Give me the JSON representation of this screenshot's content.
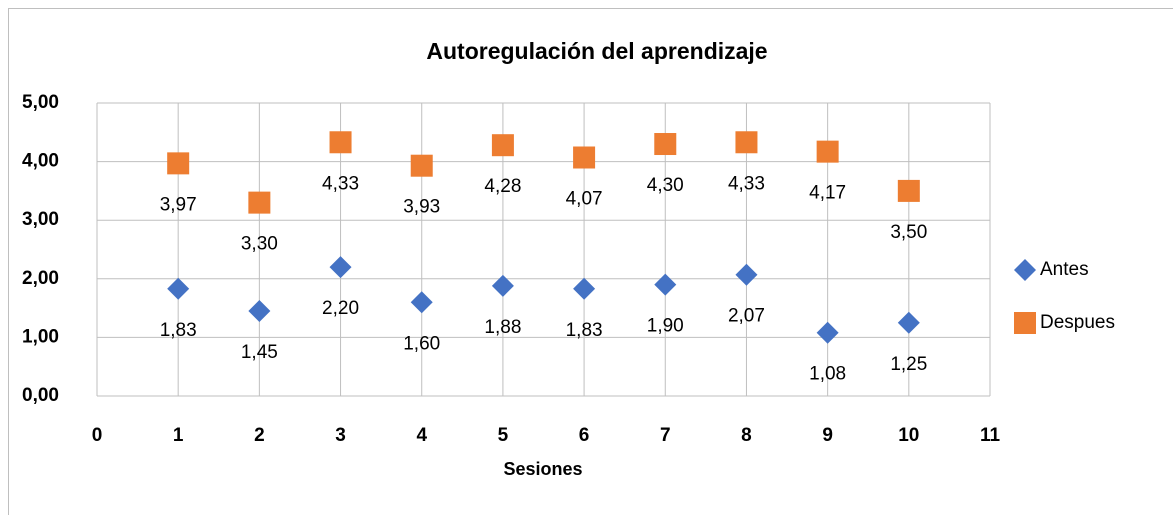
{
  "chart_data": {
    "type": "scatter",
    "title": "Autoregulación del aprendizaje",
    "x_label": "Sesiones",
    "xlim": [
      0,
      11
    ],
    "xticks": [
      0,
      1,
      2,
      3,
      4,
      5,
      6,
      7,
      8,
      9,
      10,
      11
    ],
    "ylim": [
      0,
      5
    ],
    "yticks": [
      {
        "value": 0,
        "label": "0,00"
      },
      {
        "value": 1,
        "label": "1,00"
      },
      {
        "value": 2,
        "label": "2,00"
      },
      {
        "value": 3,
        "label": "3,00"
      },
      {
        "value": 4,
        "label": "4,00"
      },
      {
        "value": 5,
        "label": "5,00"
      }
    ],
    "grid": true,
    "legend": "right",
    "series": [
      {
        "name": "Antes",
        "color": "#4472c4",
        "marker": "diamond",
        "x": [
          1,
          2,
          3,
          4,
          5,
          6,
          7,
          8,
          9,
          10
        ],
        "values": [
          1.83,
          1.45,
          2.2,
          1.6,
          1.88,
          1.83,
          1.9,
          2.07,
          1.08,
          1.25
        ],
        "value_labels": [
          "1,83",
          "1,45",
          "2,20",
          "1,60",
          "1,88",
          "1,83",
          "1,90",
          "2,07",
          "1,08",
          "1,25"
        ]
      },
      {
        "name": "Despues",
        "color": "#ed7d31",
        "marker": "square",
        "x": [
          1,
          2,
          3,
          4,
          5,
          6,
          7,
          8,
          9,
          10
        ],
        "values": [
          3.97,
          3.3,
          4.33,
          3.93,
          4.28,
          4.07,
          4.3,
          4.33,
          4.17,
          3.5
        ],
        "value_labels": [
          "3,97",
          "3,30",
          "4,33",
          "3,93",
          "4,28",
          "4,07",
          "4,30",
          "4,33",
          "4,17",
          "3,50"
        ]
      }
    ]
  }
}
